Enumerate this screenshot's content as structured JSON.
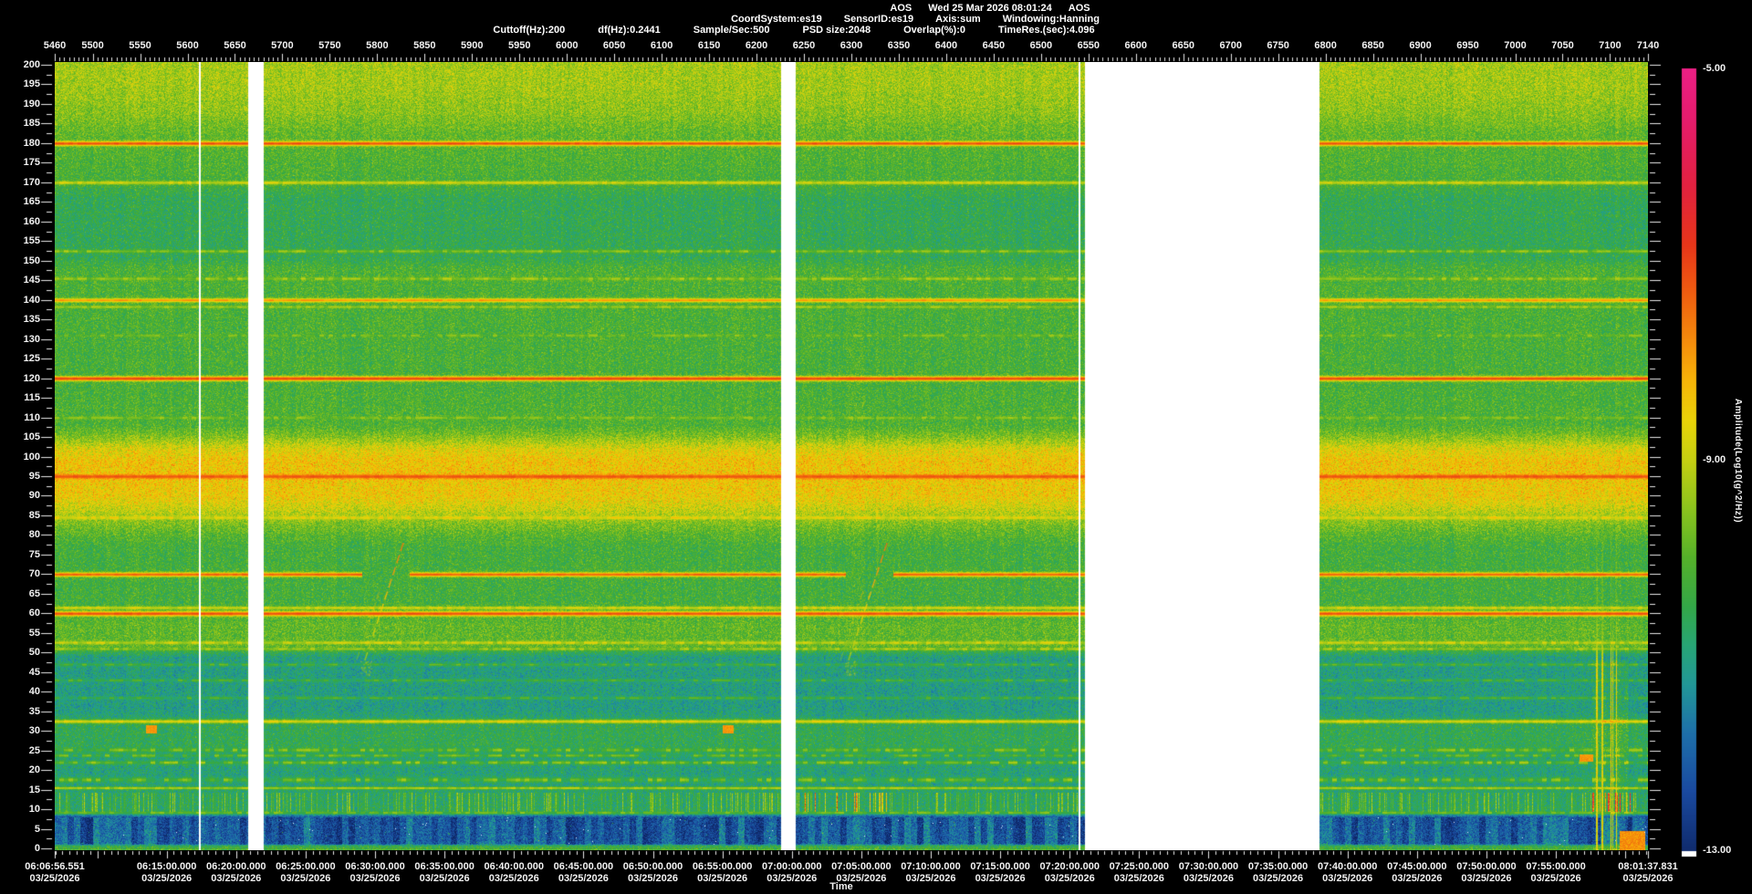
{
  "header": {
    "line1_items": [
      "AOS",
      "Wed 25 Mar 2026 08:01:24",
      "AOS"
    ],
    "line2_items": [
      "CoordSystem:es19",
      "SensorID:es19",
      "Axis:sum",
      "Windowing:Hanning"
    ],
    "line3_items": [
      "Cuttoff(Hz):200",
      "df(Hz):0.2441",
      "Sample/Sec:500",
      "PSD size:2048",
      "Overlap(%):0",
      "TimeRes.(sec):4.096"
    ]
  },
  "chart_data": {
    "type": "heatmap",
    "subtype": "spectrogram",
    "title": "AOS Wed 25 Mar 2026 08:01:24 AOS",
    "x_axis_top": {
      "range": [
        5460,
        7140
      ],
      "minor_step": 5,
      "ticks": [
        5460,
        5500,
        5550,
        5600,
        5650,
        5700,
        5750,
        5800,
        5850,
        5900,
        5950,
        6000,
        6050,
        6100,
        6150,
        6200,
        6250,
        6300,
        6350,
        6400,
        6450,
        6500,
        6550,
        6600,
        6650,
        6700,
        6750,
        6800,
        6850,
        6900,
        6950,
        7000,
        7050,
        7100,
        7140
      ]
    },
    "y_axis": {
      "range": [
        0,
        200
      ],
      "tick_step": 5,
      "minor_step": 2.5,
      "ticks": [
        200,
        195,
        190,
        185,
        180,
        175,
        170,
        165,
        160,
        155,
        150,
        145,
        140,
        135,
        130,
        125,
        120,
        115,
        110,
        105,
        100,
        95,
        90,
        85,
        80,
        75,
        70,
        65,
        60,
        55,
        50,
        45,
        40,
        35,
        30,
        25,
        20,
        15,
        10,
        5,
        0
      ]
    },
    "time_axis": {
      "axis_label": "Time",
      "date": "03/25/2026",
      "start": "06:06:56.551",
      "end": "08:01:37.831",
      "minor_interval_sec": 30,
      "major_labels": [
        "06:06:56.551",
        "06:15:00.000",
        "06:20:00.000",
        "06:25:00.000",
        "06:30:00.000",
        "06:35:00.000",
        "06:40:00.000",
        "06:45:00.000",
        "06:50:00.000",
        "06:55:00.000",
        "07:00:00.000",
        "07:05:00.000",
        "07:10:00.000",
        "07:15:00.000",
        "07:20:00.000",
        "07:25:00.000",
        "07:30:00.000",
        "07:35:00.000",
        "07:40:00.000",
        "07:45:00.000",
        "07:50:00.000",
        "07:55:00.000",
        "08:01:37.831"
      ]
    },
    "colorbar": {
      "label": "Amplitude(Log10(g^2/Hz))",
      "max": -5,
      "min": -13,
      "tick_labels": [
        {
          "value": -5,
          "text": "-5.00"
        },
        {
          "value": -9,
          "text": "-9.00"
        },
        {
          "value": -13,
          "text": "-13.00"
        }
      ],
      "underflow_color": "#ffffff",
      "stops": [
        [
          -13.3,
          12,
          36,
          96
        ],
        [
          -13.0,
          16,
          44,
          110
        ],
        [
          -12.4,
          26,
          74,
          160
        ],
        [
          -11.8,
          30,
          112,
          170
        ],
        [
          -11.3,
          34,
          152,
          152
        ],
        [
          -10.9,
          40,
          166,
          118
        ],
        [
          -10.5,
          52,
          168,
          72
        ],
        [
          -10.0,
          86,
          178,
          42
        ],
        [
          -9.5,
          140,
          196,
          30
        ],
        [
          -9.0,
          198,
          208,
          18
        ],
        [
          -8.6,
          234,
          212,
          8
        ],
        [
          -8.2,
          248,
          182,
          8
        ],
        [
          -7.8,
          246,
          142,
          12
        ],
        [
          -7.3,
          240,
          94,
          16
        ],
        [
          -6.8,
          232,
          54,
          26
        ],
        [
          -6.2,
          226,
          34,
          64
        ],
        [
          -5.5,
          230,
          28,
          110
        ],
        [
          -4.7,
          240,
          34,
          146
        ]
      ]
    },
    "data_gaps_records": [
      [
        5664,
        5680
      ],
      [
        6226,
        6241
      ],
      [
        6546,
        6794
      ]
    ],
    "dropout_lines_records": [
      5612,
      6540
    ],
    "background_profile": [
      [
        0,
        -10.2
      ],
      [
        0.8,
        -10.6
      ],
      [
        1.3,
        -12.2
      ],
      [
        8.0,
        -12.3
      ],
      [
        8.8,
        -11.2
      ],
      [
        9.6,
        -10.8
      ],
      [
        14.5,
        -10.85
      ],
      [
        16,
        -11.0
      ],
      [
        24,
        -10.95
      ],
      [
        26.5,
        -10.6
      ],
      [
        31,
        -10.6
      ],
      [
        34,
        -10.95
      ],
      [
        36,
        -11.1
      ],
      [
        49,
        -11.05
      ],
      [
        51.5,
        -10.0
      ],
      [
        57,
        -9.95
      ],
      [
        59.5,
        -10.15
      ],
      [
        63,
        -10.3
      ],
      [
        77,
        -10.3
      ],
      [
        80,
        -10.05
      ],
      [
        84,
        -9.5
      ],
      [
        87,
        -8.95
      ],
      [
        90,
        -8.55
      ],
      [
        99,
        -8.45
      ],
      [
        102,
        -8.8
      ],
      [
        105,
        -9.6
      ],
      [
        108,
        -10.15
      ],
      [
        120,
        -10.25
      ],
      [
        148,
        -10.2
      ],
      [
        151,
        -10.6
      ],
      [
        166,
        -10.6
      ],
      [
        169,
        -10.35
      ],
      [
        172,
        -10.2
      ],
      [
        178,
        -10.1
      ],
      [
        183,
        -9.9
      ],
      [
        188,
        -9.55
      ],
      [
        194,
        -9.35
      ],
      [
        201,
        -9.3
      ]
    ],
    "tonal_lines": [
      {
        "f": 180,
        "amp": -7.1,
        "w": 0.55,
        "fuzz": 0.15
      },
      {
        "f": 170,
        "amp": -8.9,
        "w": 0.45,
        "fuzz": 0.3
      },
      {
        "f": 152.5,
        "amp": -9.6,
        "w": 0.4,
        "fuzz": 0.5
      },
      {
        "f": 145.5,
        "amp": -9.5,
        "w": 0.4,
        "fuzz": 0.5
      },
      {
        "f": 140,
        "amp": -7.9,
        "w": 0.5,
        "fuzz": 0.2
      },
      {
        "f": 138.3,
        "amp": -9.4,
        "w": 0.35,
        "fuzz": 0.4
      },
      {
        "f": 131,
        "amp": -9.9,
        "w": 0.35,
        "fuzz": 0.6
      },
      {
        "f": 120,
        "amp": -7.0,
        "w": 0.6,
        "fuzz": 0.12
      },
      {
        "f": 110,
        "amp": -9.7,
        "w": 0.35,
        "fuzz": 0.5
      },
      {
        "f": 95,
        "amp": -7.2,
        "w": 0.55,
        "fuzz": 0.15
      },
      {
        "f": 84.5,
        "amp": -8.7,
        "w": 0.4,
        "fuzz": 0.4
      },
      {
        "f": 70,
        "amp": -7.3,
        "w": 0.55,
        "fuzz": 0.15,
        "breaks": [
          [
            5784,
            5834
          ],
          [
            6294,
            6344
          ]
        ]
      },
      {
        "f": 61.5,
        "amp": -8.8,
        "w": 0.4,
        "fuzz": 0.35
      },
      {
        "f": 60,
        "amp": -7.1,
        "w": 0.6,
        "fuzz": 0.12
      },
      {
        "f": 52.6,
        "amp": -9.0,
        "w": 0.4,
        "fuzz": 0.45
      },
      {
        "f": 51,
        "amp": -9.4,
        "w": 0.35,
        "fuzz": 0.5
      },
      {
        "f": 47,
        "amp": -10.3,
        "w": 0.35,
        "fuzz": 0.6
      },
      {
        "f": 43,
        "amp": -10.35,
        "w": 0.35,
        "fuzz": 0.6
      },
      {
        "f": 38.5,
        "amp": -10.4,
        "w": 0.35,
        "fuzz": 0.6
      },
      {
        "f": 32.5,
        "amp": -8.7,
        "w": 0.5,
        "fuzz": 0.3
      },
      {
        "f": 25.2,
        "amp": -10.0,
        "w": 0.5,
        "fuzz": 0.75
      },
      {
        "f": 23.8,
        "amp": -10.2,
        "w": 0.4,
        "fuzz": 0.8
      },
      {
        "f": 22,
        "amp": -9.9,
        "w": 0.45,
        "fuzz": 0.8
      },
      {
        "f": 17.6,
        "amp": -10.1,
        "w": 0.6,
        "fuzz": 0.85
      },
      {
        "f": 15.5,
        "amp": -9.2,
        "w": 0.35,
        "fuzz": 0.4
      },
      {
        "f": 9.2,
        "amp": -9.9,
        "w": 0.35,
        "fuzz": 0.6
      }
    ],
    "chirps": [
      {
        "r0": 5787,
        "f0": 48,
        "r1": 5829,
        "f1": 79,
        "amp_lo": -9.3,
        "amp_hi": -7.4
      },
      {
        "r0": 6297,
        "f0": 48,
        "r1": 6339,
        "f1": 79,
        "amp_lo": -9.3,
        "amp_hi": -7.4
      }
    ],
    "blips": [
      {
        "r0": 5556,
        "r1": 5568,
        "f": 30.5,
        "amp": -8.1
      },
      {
        "r0": 6164,
        "r1": 6176,
        "f": 30.5,
        "amp": -8.1
      },
      {
        "r0": 7068,
        "r1": 7082,
        "f": 23.2,
        "amp": -8.1
      }
    ],
    "striation_band": {
      "f0": 9.4,
      "f1": 14.4,
      "boost_regions": [
        {
          "r0": 6245,
          "r1": 6340,
          "gain": 1.8
        },
        {
          "r0": 7080,
          "r1": 7125,
          "gain": 2.2
        }
      ]
    },
    "blob_band": {
      "f0": 1.0,
      "f1": 8.0,
      "amp": -12.3
    },
    "event_streaks": {
      "records": [
        7085,
        7086,
        7091,
        7092,
        7101,
        7102,
        7106
      ],
      "f_max": 52,
      "amp": -9.6,
      "fade_to_f": 105,
      "cluster": [
        7080,
        7118
      ],
      "blob": {
        "r0": 7110,
        "r1": 7137,
        "f_max": 4.5,
        "amp": -8.2
      }
    },
    "noise": {
      "seed": 20260325,
      "sigma": 1.15
    }
  }
}
